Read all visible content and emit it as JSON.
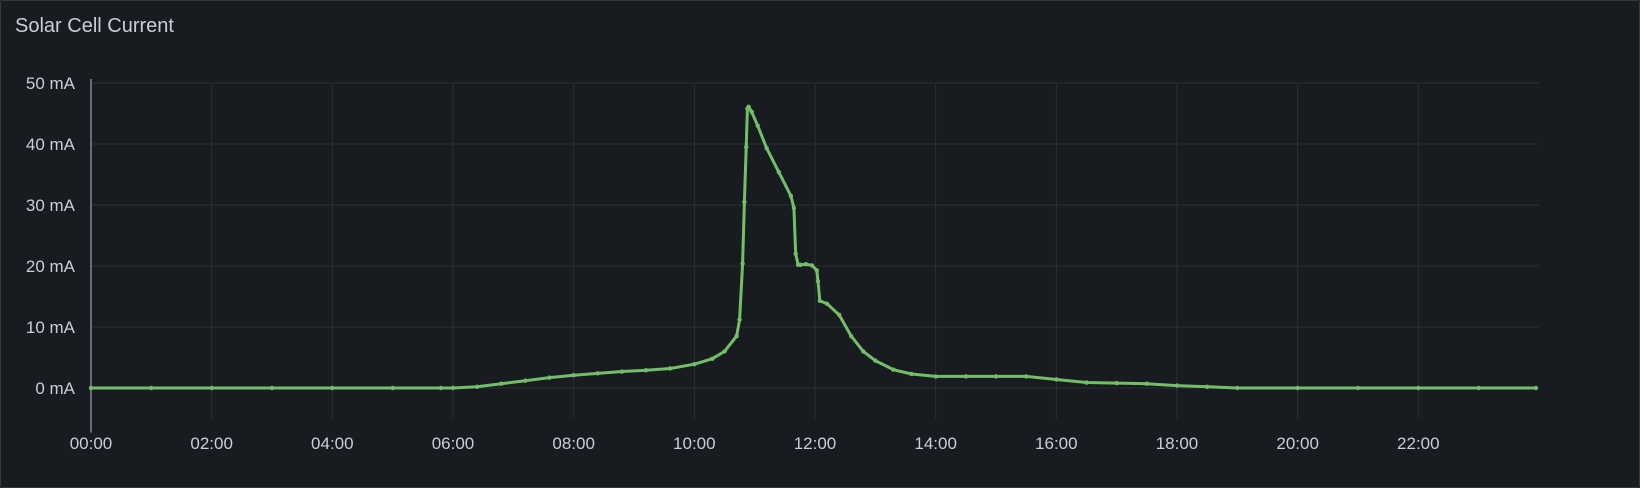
{
  "panel": {
    "title": "Solar Cell Current"
  },
  "colors": {
    "background": "#181b1f",
    "series": "#73bf69",
    "grid": "#2c2f35",
    "text": "#ccccdc"
  },
  "chart_data": {
    "type": "line",
    "title": "Solar Cell Current",
    "xlabel": "",
    "ylabel": "",
    "xlim": [
      0,
      24
    ],
    "ylim": [
      -5,
      50
    ],
    "x_ticks": [
      "00:00",
      "02:00",
      "04:00",
      "06:00",
      "08:00",
      "10:00",
      "12:00",
      "14:00",
      "16:00",
      "18:00",
      "20:00",
      "22:00"
    ],
    "y_ticks": [
      "0 mA",
      "10 mA",
      "20 mA",
      "30 mA",
      "40 mA",
      "50 mA"
    ],
    "grid": true,
    "legend": "none",
    "series": [
      {
        "x": [
          0,
          1,
          2,
          3,
          4,
          5,
          5.8,
          6,
          6.4,
          6.8,
          7.2,
          7.6,
          8,
          8.4,
          8.8,
          9.2,
          9.6,
          10,
          10.3,
          10.5,
          10.7,
          10.75,
          10.8,
          10.83,
          10.86,
          10.88,
          10.9,
          10.95,
          11.05,
          11.2,
          11.4,
          11.6,
          11.65,
          11.68,
          11.72,
          11.76,
          11.85,
          11.95,
          12.03,
          12.05,
          12.08,
          12.2,
          12.4,
          12.6,
          12.8,
          13.0,
          13.3,
          13.6,
          14,
          14.5,
          15,
          15.5,
          16,
          16.5,
          17,
          17.5,
          18,
          18.5,
          19,
          20,
          21,
          22,
          23,
          23.95
        ],
        "y": [
          0,
          0,
          0,
          0,
          0,
          0,
          0,
          0,
          0.2,
          0.7,
          1.2,
          1.7,
          2.1,
          2.4,
          2.7,
          2.9,
          3.2,
          3.9,
          4.8,
          6.0,
          8.5,
          11.2,
          20.4,
          30.5,
          39.5,
          45.8,
          46.1,
          45.3,
          43.0,
          39.3,
          35.4,
          31.5,
          29.5,
          22.0,
          20.2,
          20.2,
          20.3,
          20.1,
          19.3,
          17.5,
          14.3,
          13.8,
          12.0,
          8.5,
          6.0,
          4.5,
          3.0,
          2.3,
          1.9,
          1.9,
          1.9,
          1.9,
          1.4,
          0.9,
          0.8,
          0.7,
          0.4,
          0.2,
          0,
          0,
          0,
          0,
          0,
          0
        ]
      }
    ]
  }
}
